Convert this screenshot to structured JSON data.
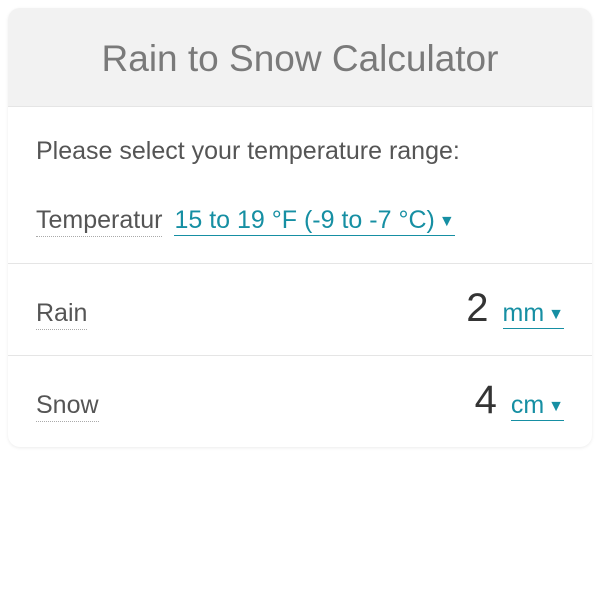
{
  "card": {
    "title": "Rain to Snow Calculator",
    "background_color": "#f2f2f2",
    "title_color": "#7a7a7a",
    "title_fontsize": 37
  },
  "section_temperature": {
    "instruction": "Please select your temperature range:",
    "label": "Temperatur",
    "selected_value": "15 to 19 °F (-9 to -7 °C)",
    "link_color": "#168fa3"
  },
  "section_rain": {
    "label": "Rain",
    "value": "2",
    "unit": "mm"
  },
  "section_snow": {
    "label": "Snow",
    "value": "4",
    "unit": "cm"
  },
  "text_color": "#555555",
  "value_color": "#343434",
  "value_fontsize": 40,
  "label_fontsize": 25
}
